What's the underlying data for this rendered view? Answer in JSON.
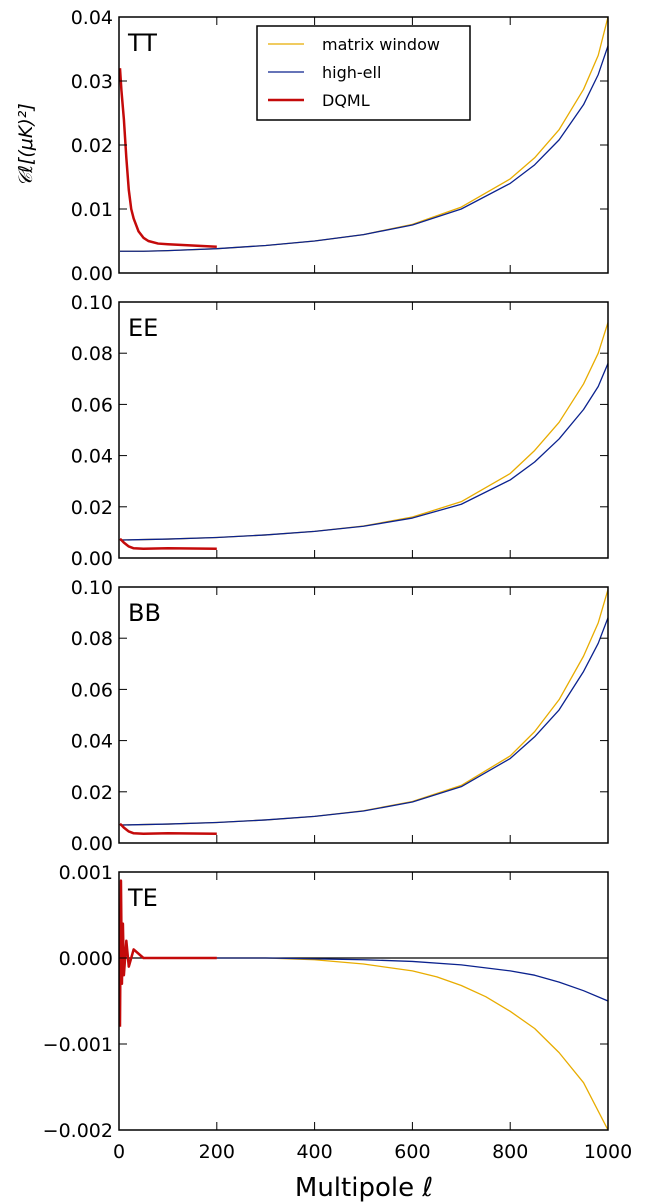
{
  "chart_data": {
    "type": "line",
    "xlabel": "Multipole ℓ",
    "ylabel": "𝒞ℓ[(μK)²]",
    "xlim": [
      0,
      1000
    ],
    "x_ticks": [
      "0",
      "200",
      "400",
      "600",
      "800",
      "1000"
    ],
    "legend": {
      "placement": "top-center (TT panel)",
      "entries": [
        "matrix window",
        "high-ell",
        "DQML"
      ]
    },
    "colors": {
      "matrix window": "#e8ac00",
      "high-ell": "#0b228e",
      "DQML": "#c40a0a",
      "zero_line": "#000000"
    },
    "panels": [
      {
        "label": "TT",
        "ylim": [
          0,
          0.04
        ],
        "y_ticks": [
          "0.00",
          "0.01",
          "0.02",
          "0.03",
          "0.04"
        ],
        "series": [
          {
            "name": "matrix window",
            "x": [
              2,
              50,
              100,
              200,
              300,
              400,
              500,
              600,
              700,
              800,
              850,
              900,
              950,
              980,
              1000
            ],
            "y": [
              0.0034,
              0.0034,
              0.0035,
              0.0038,
              0.0043,
              0.005,
              0.006,
              0.0076,
              0.0103,
              0.0147,
              0.018,
              0.0224,
              0.0287,
              0.034,
              0.04
            ]
          },
          {
            "name": "high-ell",
            "x": [
              2,
              50,
              100,
              200,
              300,
              400,
              500,
              600,
              700,
              800,
              850,
              900,
              950,
              980,
              1000
            ],
            "y": [
              0.0034,
              0.0034,
              0.0035,
              0.0038,
              0.0043,
              0.005,
              0.006,
              0.0075,
              0.01,
              0.014,
              0.0169,
              0.0208,
              0.0263,
              0.031,
              0.0355
            ]
          },
          {
            "name": "DQML",
            "x": [
              2,
              5,
              10,
              15,
              20,
              25,
              30,
              40,
              50,
              60,
              80,
              100,
              150,
              200
            ],
            "y": [
              0.032,
              0.0285,
              0.024,
              0.018,
              0.013,
              0.01,
              0.0085,
              0.0065,
              0.0055,
              0.005,
              0.0046,
              0.0045,
              0.0043,
              0.0041
            ]
          }
        ]
      },
      {
        "label": "EE",
        "ylim": [
          0,
          0.1
        ],
        "y_ticks": [
          "0.00",
          "0.02",
          "0.04",
          "0.06",
          "0.08",
          "0.10"
        ],
        "series": [
          {
            "name": "matrix window",
            "x": [
              2,
              50,
              100,
              200,
              300,
              400,
              500,
              600,
              700,
              800,
              850,
              900,
              950,
              980,
              1000
            ],
            "y": [
              0.007,
              0.0072,
              0.0074,
              0.008,
              0.009,
              0.0104,
              0.0125,
              0.016,
              0.022,
              0.033,
              0.042,
              0.053,
              0.068,
              0.08,
              0.092
            ]
          },
          {
            "name": "high-ell",
            "x": [
              2,
              50,
              100,
              200,
              300,
              400,
              500,
              600,
              700,
              800,
              850,
              900,
              950,
              980,
              1000
            ],
            "y": [
              0.007,
              0.0072,
              0.0074,
              0.008,
              0.009,
              0.0104,
              0.0124,
              0.0156,
              0.021,
              0.0305,
              0.0375,
              0.0465,
              0.058,
              0.067,
              0.076
            ]
          },
          {
            "name": "DQML",
            "x": [
              2,
              5,
              10,
              20,
              30,
              50,
              100,
              150,
              200
            ],
            "y": [
              0.0075,
              0.007,
              0.006,
              0.0045,
              0.0038,
              0.0036,
              0.0038,
              0.0037,
              0.0036
            ]
          }
        ]
      },
      {
        "label": "BB",
        "ylim": [
          0,
          0.1
        ],
        "y_ticks": [
          "0.00",
          "0.02",
          "0.04",
          "0.06",
          "0.08",
          "0.10"
        ],
        "series": [
          {
            "name": "matrix window",
            "x": [
              2,
              50,
              100,
              200,
              300,
              400,
              500,
              600,
              700,
              800,
              850,
              900,
              950,
              980,
              1000
            ],
            "y": [
              0.007,
              0.0072,
              0.0074,
              0.008,
              0.009,
              0.0104,
              0.0126,
              0.0162,
              0.0225,
              0.034,
              0.0435,
              0.056,
              0.073,
              0.086,
              0.099
            ]
          },
          {
            "name": "high-ell",
            "x": [
              2,
              50,
              100,
              200,
              300,
              400,
              500,
              600,
              700,
              800,
              850,
              900,
              950,
              980,
              1000
            ],
            "y": [
              0.007,
              0.0072,
              0.0074,
              0.008,
              0.009,
              0.0104,
              0.0125,
              0.016,
              0.022,
              0.033,
              0.0415,
              0.052,
              0.067,
              0.078,
              0.088
            ]
          },
          {
            "name": "DQML",
            "x": [
              2,
              5,
              10,
              20,
              30,
              50,
              100,
              150,
              200
            ],
            "y": [
              0.0075,
              0.007,
              0.006,
              0.0045,
              0.0038,
              0.0036,
              0.0038,
              0.0037,
              0.0036
            ]
          }
        ]
      },
      {
        "label": "TE",
        "ylim": [
          -0.002,
          0.001
        ],
        "y_ticks": [
          "−0.002",
          "−0.001",
          "0.000",
          "0.001"
        ],
        "zero_line": true,
        "series": [
          {
            "name": "matrix window",
            "x": [
              200,
              300,
              400,
              500,
              600,
              650,
              700,
              750,
              800,
              850,
              900,
              950,
              1000
            ],
            "y": [
              0.0,
              -0.0,
              -2e-05,
              -7e-05,
              -0.00015,
              -0.00022,
              -0.00032,
              -0.00045,
              -0.00062,
              -0.00082,
              -0.0011,
              -0.00145,
              -0.002
            ]
          },
          {
            "name": "high-ell",
            "x": [
              200,
              300,
              400,
              500,
              600,
              700,
              800,
              850,
              900,
              950,
              1000
            ],
            "y": [
              0.0,
              0.0,
              -1e-05,
              -2e-05,
              -4e-05,
              -8e-05,
              -0.00015,
              -0.0002,
              -0.00028,
              -0.00038,
              -0.0005
            ]
          },
          {
            "name": "DQML",
            "x": [
              2,
              4,
              6,
              8,
              10,
              15,
              20,
              30,
              50,
              100,
              150,
              200
            ],
            "y": [
              -0.0008,
              0.0009,
              -0.0003,
              0.0004,
              -0.0002,
              0.0002,
              -0.0001,
              0.0001,
              0.0,
              0.0,
              0.0,
              0.0
            ]
          }
        ]
      }
    ]
  }
}
